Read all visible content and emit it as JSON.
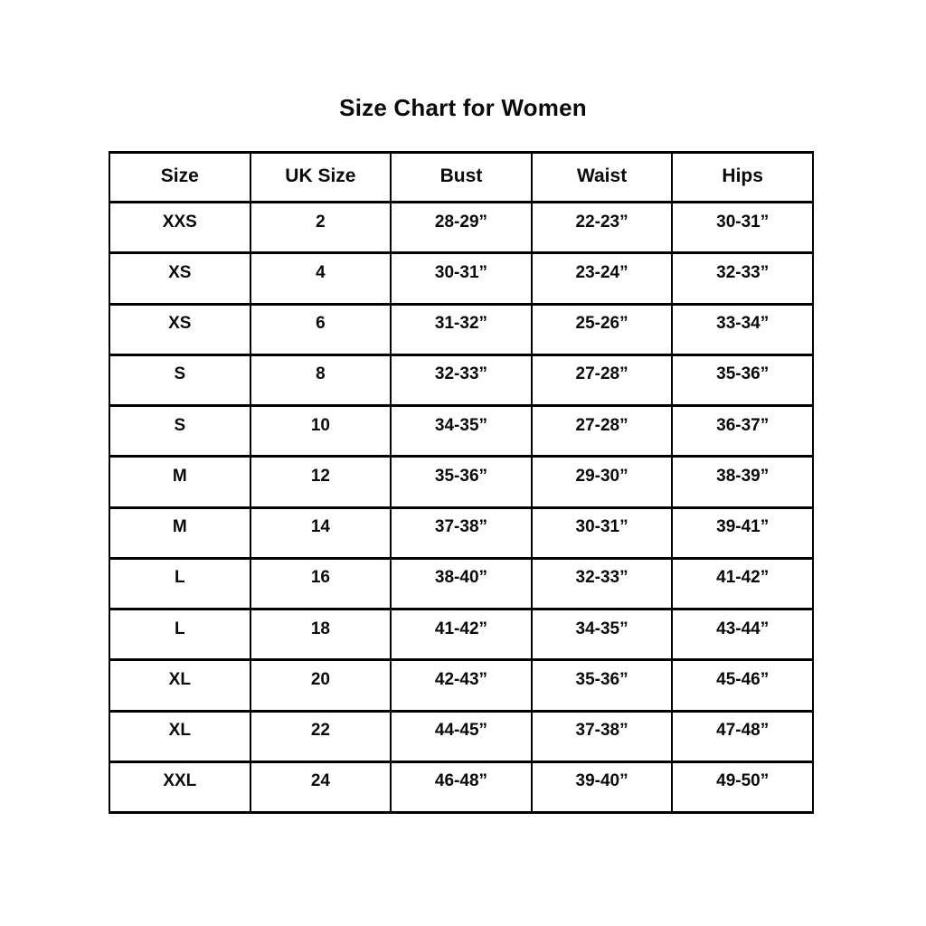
{
  "page": {
    "title": "Size Chart for Women"
  },
  "colors": {
    "text": "#0a0a0a",
    "border": "#000000",
    "background": "#ffffff"
  },
  "chart_data": {
    "type": "table",
    "title": "Size Chart for Women",
    "columns": [
      "Size",
      "UK Size",
      "Bust",
      "Waist",
      "Hips"
    ],
    "rows": [
      [
        "XXS",
        "2",
        "28-29”",
        "22-23”",
        "30-31”"
      ],
      [
        "XS",
        "4",
        "30-31”",
        "23-24”",
        "32-33”"
      ],
      [
        "XS",
        "6",
        "31-32”",
        "25-26”",
        "33-34”"
      ],
      [
        "S",
        "8",
        "32-33”",
        "27-28”",
        "35-36”"
      ],
      [
        "S",
        "10",
        "34-35”",
        "27-28”",
        "36-37”"
      ],
      [
        "M",
        "12",
        "35-36”",
        "29-30”",
        "38-39”"
      ],
      [
        "M",
        "14",
        "37-38”",
        "30-31”",
        "39-41”"
      ],
      [
        "L",
        "16",
        "38-40”",
        "32-33”",
        "41-42”"
      ],
      [
        "L",
        "18",
        "41-42”",
        "34-35”",
        "43-44”"
      ],
      [
        "XL",
        "20",
        "42-43”",
        "35-36”",
        "45-46”"
      ],
      [
        "XL",
        "22",
        "44-45”",
        "37-38”",
        "47-48”"
      ],
      [
        "XXL",
        "24",
        "46-48”",
        "39-40”",
        "49-50”"
      ]
    ]
  }
}
